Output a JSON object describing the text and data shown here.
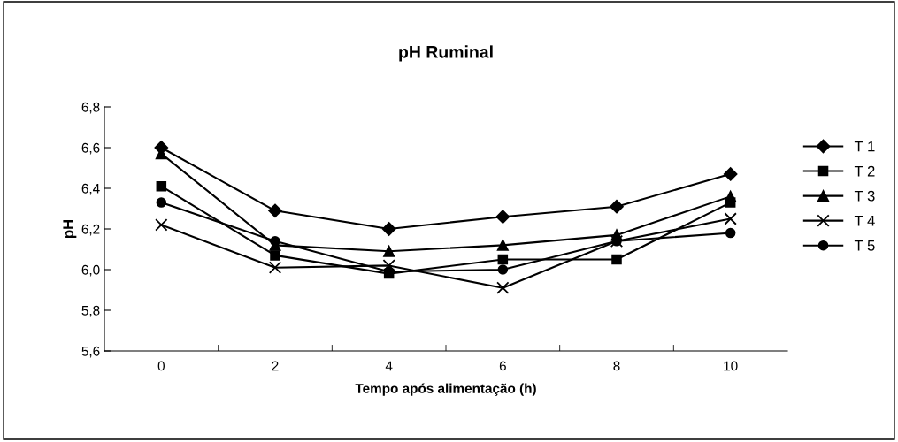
{
  "chart_data": {
    "type": "line",
    "title": "pH Ruminal",
    "xlabel": "Tempo após alimentação (h)",
    "ylabel": "pH",
    "categories": [
      "0",
      "2",
      "4",
      "6",
      "8",
      "10"
    ],
    "series": [
      {
        "name": "T 1",
        "color": "#000000",
        "marker": "diamond",
        "values": [
          6.6,
          6.29,
          6.2,
          6.26,
          6.31,
          6.47
        ]
      },
      {
        "name": "T 2",
        "color": "#000000",
        "marker": "square",
        "values": [
          6.41,
          6.07,
          5.98,
          6.05,
          6.05,
          6.33
        ]
      },
      {
        "name": "T 3",
        "color": "#000000",
        "marker": "triangle",
        "values": [
          6.57,
          6.12,
          6.09,
          6.12,
          6.17,
          6.36
        ]
      },
      {
        "name": "T 4",
        "color": "#000000",
        "marker": "cross",
        "values": [
          6.22,
          6.01,
          6.02,
          5.91,
          6.14,
          6.25
        ]
      },
      {
        "name": "T 5",
        "color": "#000000",
        "marker": "circle",
        "values": [
          6.33,
          6.14,
          5.99,
          6.0,
          6.14,
          6.18
        ]
      }
    ],
    "ylim": [
      5.6,
      6.8
    ],
    "yticks": [
      {
        "value": 5.6,
        "label": "5,6"
      },
      {
        "value": 5.8,
        "label": "5,8"
      },
      {
        "value": 6.0,
        "label": "6,0"
      },
      {
        "value": 6.2,
        "label": "6,2"
      },
      {
        "value": 6.4,
        "label": "6,4"
      },
      {
        "value": 6.6,
        "label": "6,6"
      },
      {
        "value": 6.8,
        "label": "6,8"
      }
    ],
    "grid": false,
    "legend": "right",
    "line_style": "solid"
  }
}
